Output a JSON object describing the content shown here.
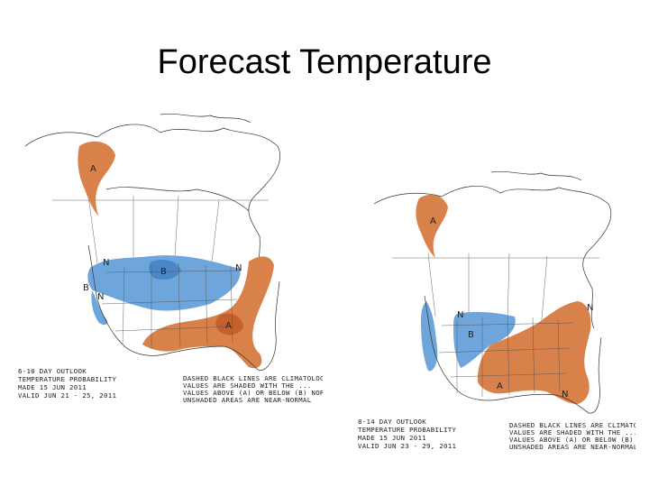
{
  "slide": {
    "title": "Forecast Temperature"
  },
  "maps": [
    {
      "outlook_title": "6-10 DAY OUTLOOK",
      "product": "TEMPERATURE PROBABILITY",
      "made": "MADE   15 JUN 2011",
      "valid": "VALID   JUN 21 - 25, 2011",
      "legend_lines": [
        "DASHED BLACK LINES ARE CLIMATOLOGY",
        "VALUES ARE SHADED WITH THE ...",
        "VALUES ABOVE (A) OR BELOW (B) NORMAL",
        "UNSHADED AREAS ARE NEAR-NORMAL"
      ],
      "labels": {
        "above": "A",
        "below": "B",
        "normal": "N"
      }
    },
    {
      "outlook_title": "8-14 DAY OUTLOOK",
      "product": "TEMPERATURE PROBABILITY",
      "made": "MADE   15 JUN 2011",
      "valid": "VALID   JUN 23 - 29, 2011",
      "legend_lines": [
        "DASHED BLACK LINES ARE CLIMATOLOGY",
        "VALUES ARE SHADED WITH THE ...",
        "VALUES ABOVE (A) OR BELOW (B) NORMAL",
        "UNSHADED AREAS ARE NEAR-NORMAL"
      ],
      "labels": {
        "above": "A",
        "below": "B",
        "normal": "N"
      }
    }
  ],
  "colors": {
    "above": "#d8814a",
    "above_strong": "#c4602e",
    "below": "#6ea6dc",
    "below_strong": "#4b86c6",
    "linework": "#333333"
  }
}
